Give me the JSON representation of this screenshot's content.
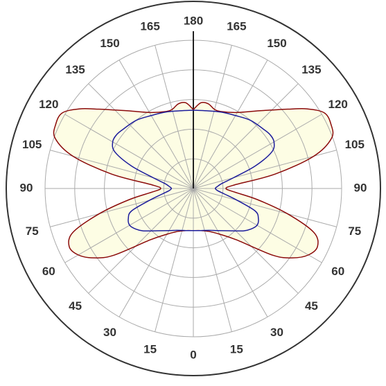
{
  "chart_data": {
    "type": "polar",
    "thetaticks": [
      0,
      15,
      30,
      45,
      60,
      75,
      90,
      105,
      120,
      135,
      150,
      165,
      180
    ],
    "rlim": [
      0,
      250
    ],
    "rticks": [
      50,
      100,
      150,
      200,
      250
    ],
    "fill": "#fdfde4",
    "series": [
      {
        "color": "#8b0a0a",
        "theta": [
          0,
          10,
          20,
          30,
          40,
          50,
          55,
          60,
          65,
          70,
          75,
          80,
          85,
          90,
          95,
          100,
          105,
          110,
          115,
          120,
          125,
          130,
          135,
          140,
          150,
          160,
          165,
          170,
          175,
          180
        ],
        "values": [
          71,
          72,
          77,
          89,
          113,
          175,
          204,
          224,
          231,
          216,
          164,
          111,
          70,
          55,
          70,
          140,
          210,
          248,
          256,
          255,
          234,
          208,
          187,
          171,
          148,
          138,
          138,
          145,
          145,
          133
        ]
      },
      {
        "color": "#1c1c9c",
        "theta": [
          0,
          10,
          20,
          30,
          40,
          50,
          55,
          60,
          65,
          70,
          75,
          80,
          85,
          90,
          95,
          100,
          105,
          110,
          115,
          120,
          125,
          130,
          140,
          150,
          160,
          170,
          180
        ],
        "values": [
          71,
          72,
          75,
          82,
          93,
          111,
          119,
          124,
          121,
          111,
          76,
          53,
          41,
          37,
          41,
          49,
          70,
          111,
          146,
          157,
          158,
          155,
          150,
          142,
          137,
          133,
          132
        ]
      }
    ]
  }
}
